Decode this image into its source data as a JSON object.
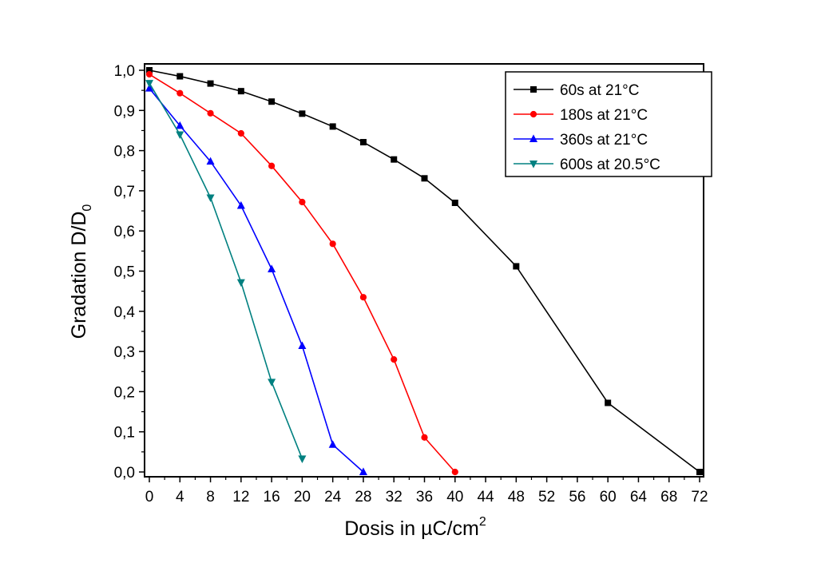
{
  "chart_data": {
    "type": "line",
    "xlabel": "Dosis in µC/cm",
    "xlabel_sup": "2",
    "ylabel": "Gradation D/D",
    "ylabel_sub": "0",
    "xlim": [
      0,
      72
    ],
    "ylim": [
      0,
      1.0
    ],
    "x_ticks": [
      "0",
      "4",
      "8",
      "12",
      "16",
      "20",
      "24",
      "28",
      "32",
      "36",
      "40",
      "44",
      "48",
      "52",
      "56",
      "60",
      "64",
      "68",
      "72"
    ],
    "y_ticks": [
      "0,0",
      "0,1",
      "0,2",
      "0,3",
      "0,4",
      "0,5",
      "0,6",
      "0,7",
      "0,8",
      "0,9",
      "1,0"
    ],
    "grid": false,
    "legend_position": "top-right",
    "series": [
      {
        "name": "60s at 21°C",
        "color": "#000000",
        "marker": "square",
        "x": [
          0,
          4,
          8,
          12,
          16,
          20,
          24,
          28,
          32,
          36,
          40,
          48,
          60,
          72
        ],
        "y": [
          1.0,
          0.985,
          0.967,
          0.948,
          0.922,
          0.892,
          0.86,
          0.821,
          0.778,
          0.731,
          0.67,
          0.512,
          0.172,
          0.0
        ]
      },
      {
        "name": "180s at 21°C",
        "color": "#ff0000",
        "marker": "circle",
        "x": [
          0,
          4,
          8,
          12,
          16,
          20,
          24,
          28,
          32,
          36,
          40
        ],
        "y": [
          0.99,
          0.943,
          0.893,
          0.843,
          0.762,
          0.672,
          0.568,
          0.435,
          0.28,
          0.086,
          0.0
        ]
      },
      {
        "name": "360s at 21°C",
        "color": "#0000ff",
        "marker": "triangle-up",
        "x": [
          0,
          4,
          8,
          12,
          16,
          20,
          24,
          28
        ],
        "y": [
          0.955,
          0.862,
          0.773,
          0.663,
          0.505,
          0.314,
          0.068,
          0.0
        ]
      },
      {
        "name": "600s at 20.5°C",
        "color": "#008080",
        "marker": "triangle-down",
        "x": [
          0,
          4,
          8,
          12,
          16,
          20
        ],
        "y": [
          0.968,
          0.84,
          0.683,
          0.472,
          0.224,
          0.033
        ]
      }
    ]
  }
}
